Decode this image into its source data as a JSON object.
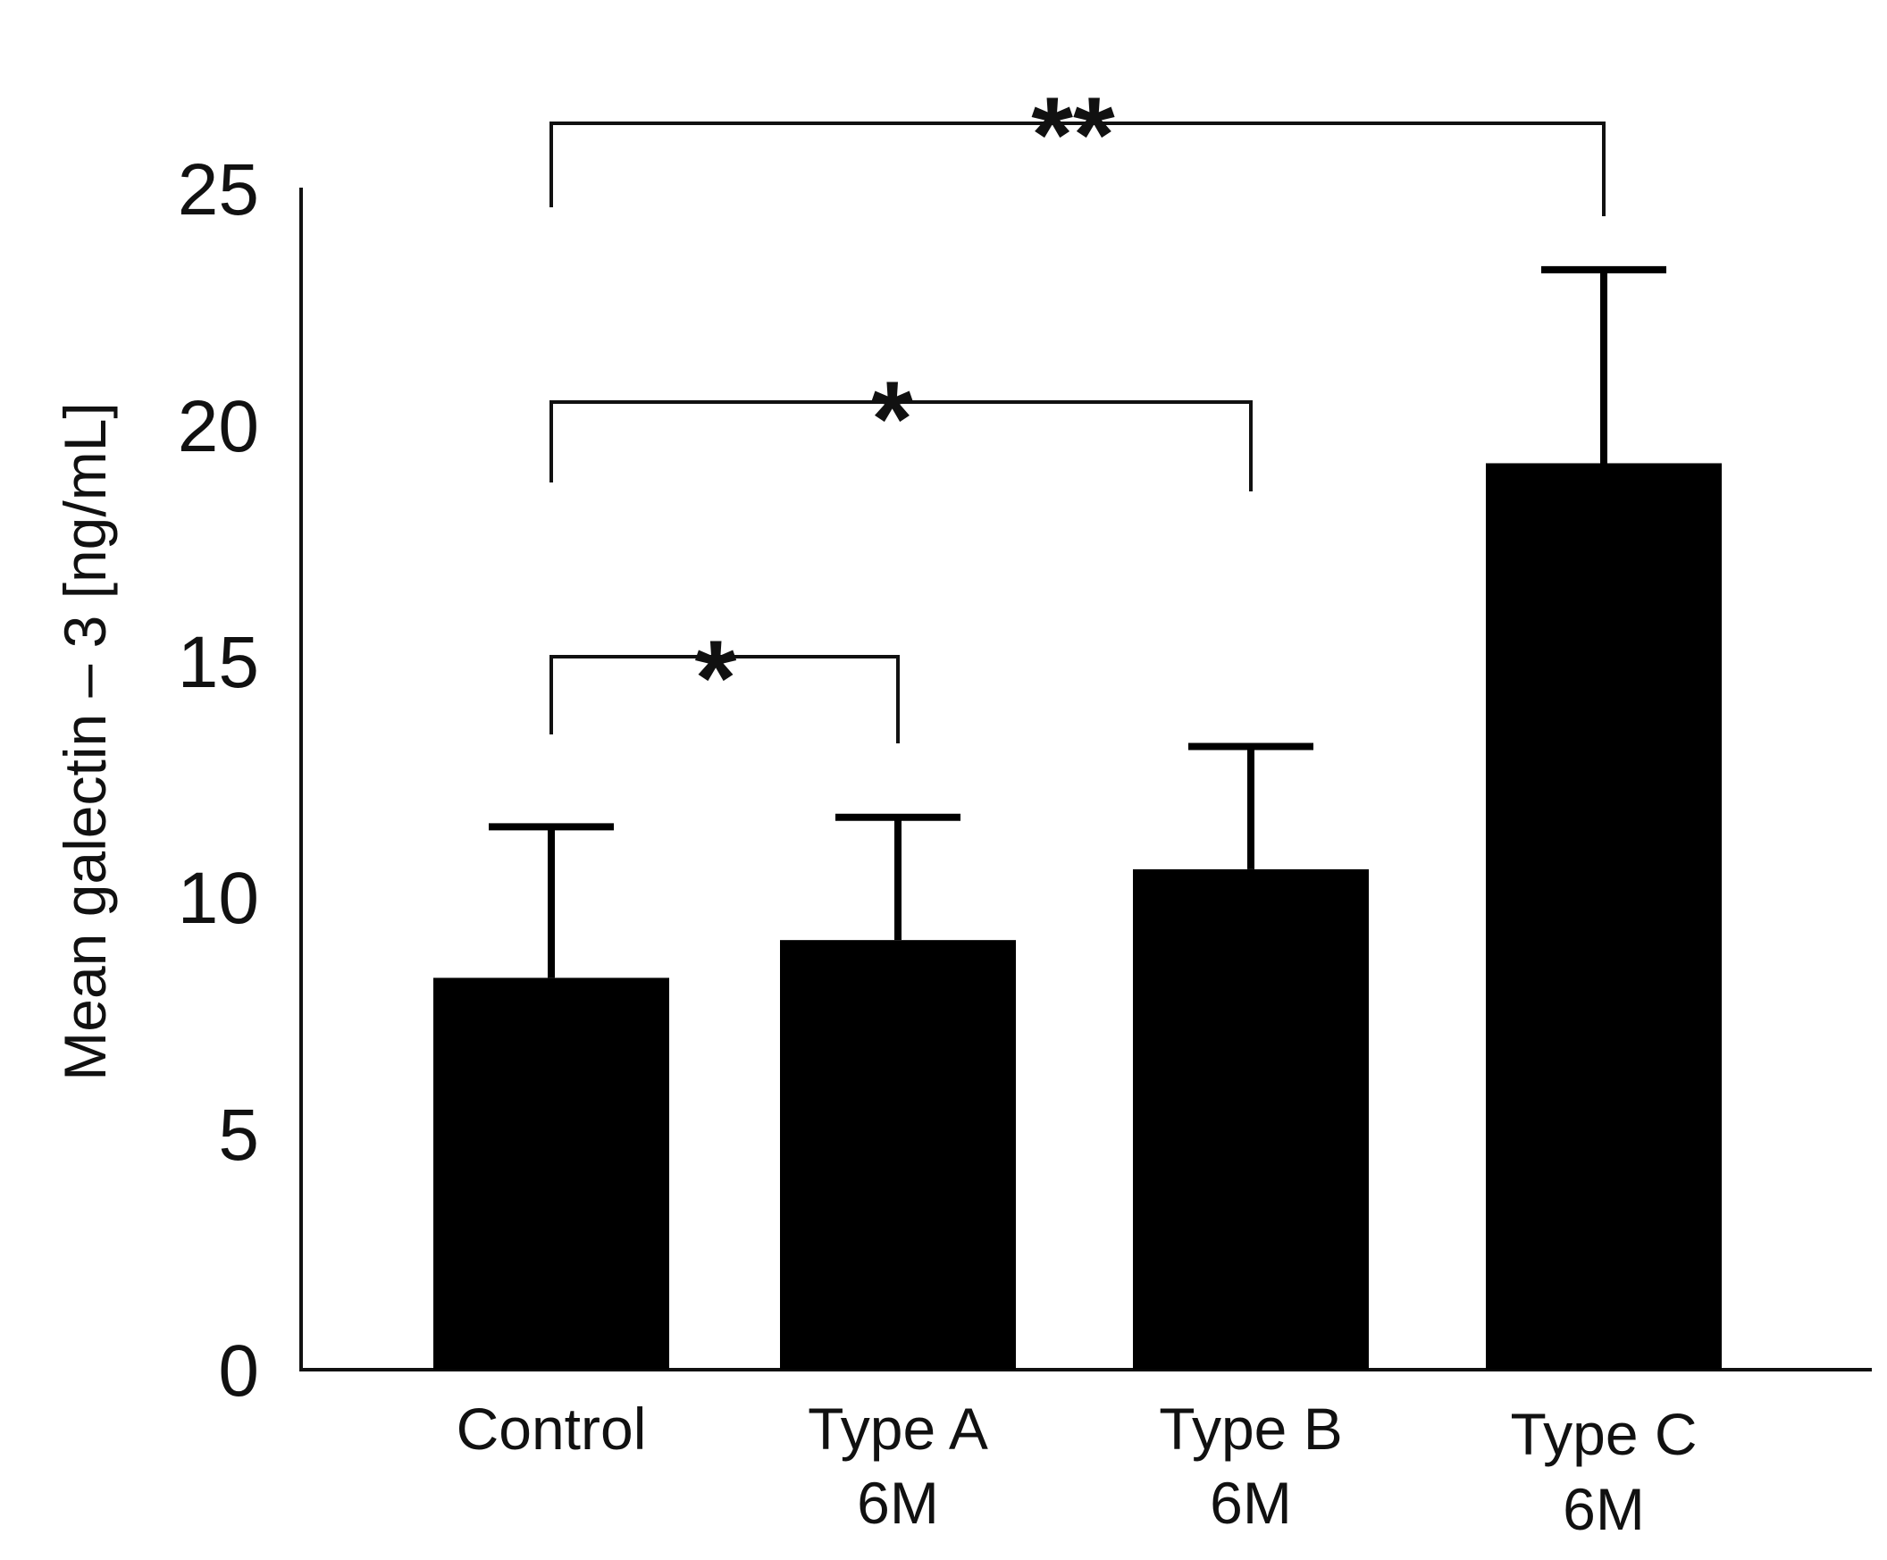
{
  "chart_data": {
    "type": "bar",
    "title": "",
    "xlabel": "",
    "ylabel": "Mean galectin – 3 [ng/mL]",
    "ylim": [
      0,
      25
    ],
    "yticks": [
      "0",
      "5",
      "10",
      "15",
      "20",
      "25"
    ],
    "categories": [
      {
        "line1": "Control",
        "line2": ""
      },
      {
        "line1": "Type A",
        "line2": "6M"
      },
      {
        "line1": "Type B",
        "line2": "6M"
      },
      {
        "line1": "Type C",
        "line2": "6M"
      }
    ],
    "series": [
      {
        "name": "Mean galectin-3",
        "values": [
          8.3,
          9.1,
          10.6,
          19.2
        ],
        "error_upper": [
          11.5,
          11.7,
          13.2,
          23.3
        ],
        "color": "#000000"
      }
    ],
    "significance": [
      {
        "from": 0,
        "to": 1,
        "label": "*"
      },
      {
        "from": 0,
        "to": 2,
        "label": "*"
      },
      {
        "from": 0,
        "to": 3,
        "label": "**"
      }
    ]
  }
}
